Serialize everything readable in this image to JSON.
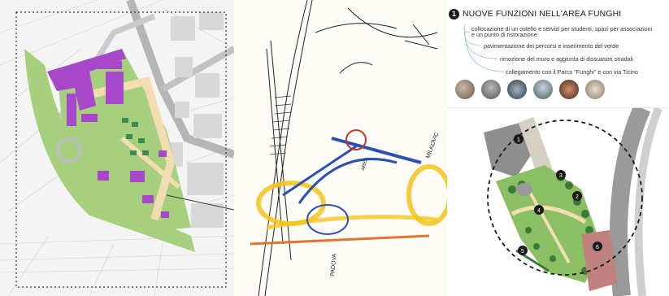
{
  "section": {
    "number": "1",
    "title": "NUOVE FUNZIONI NELL'AREA FUNGHI"
  },
  "items": [
    "collocazione di un ostello e servizi per studenti, spazi per associazioni",
    "e un punto di ristorazione",
    "pavimentazione dei percorsi e inserimento del verde",
    "rimozione del muro e aggiunta di dissuasori stradali",
    "collegamento con il Parco \"Funghi\" e con via Ticino"
  ],
  "sketch_labels": {
    "right": "MILKOVIC",
    "bottom": "PADOVA",
    "center": "AREA"
  },
  "map_markers": [
    "1",
    "2",
    "3",
    "4",
    "5",
    "6"
  ],
  "photos": [
    "photo-1",
    "photo-2",
    "photo-3",
    "photo-4",
    "photo-5",
    "photo-6"
  ],
  "colors": {
    "building_purple": "#a648c9",
    "green_area": "#a6d07d",
    "park_green": "#8bbf63",
    "road_gray": "#8a8a8a",
    "sketch_yellow": "#f2c41c",
    "sketch_blue": "#2a50b8",
    "sketch_orange": "#e0742c"
  }
}
